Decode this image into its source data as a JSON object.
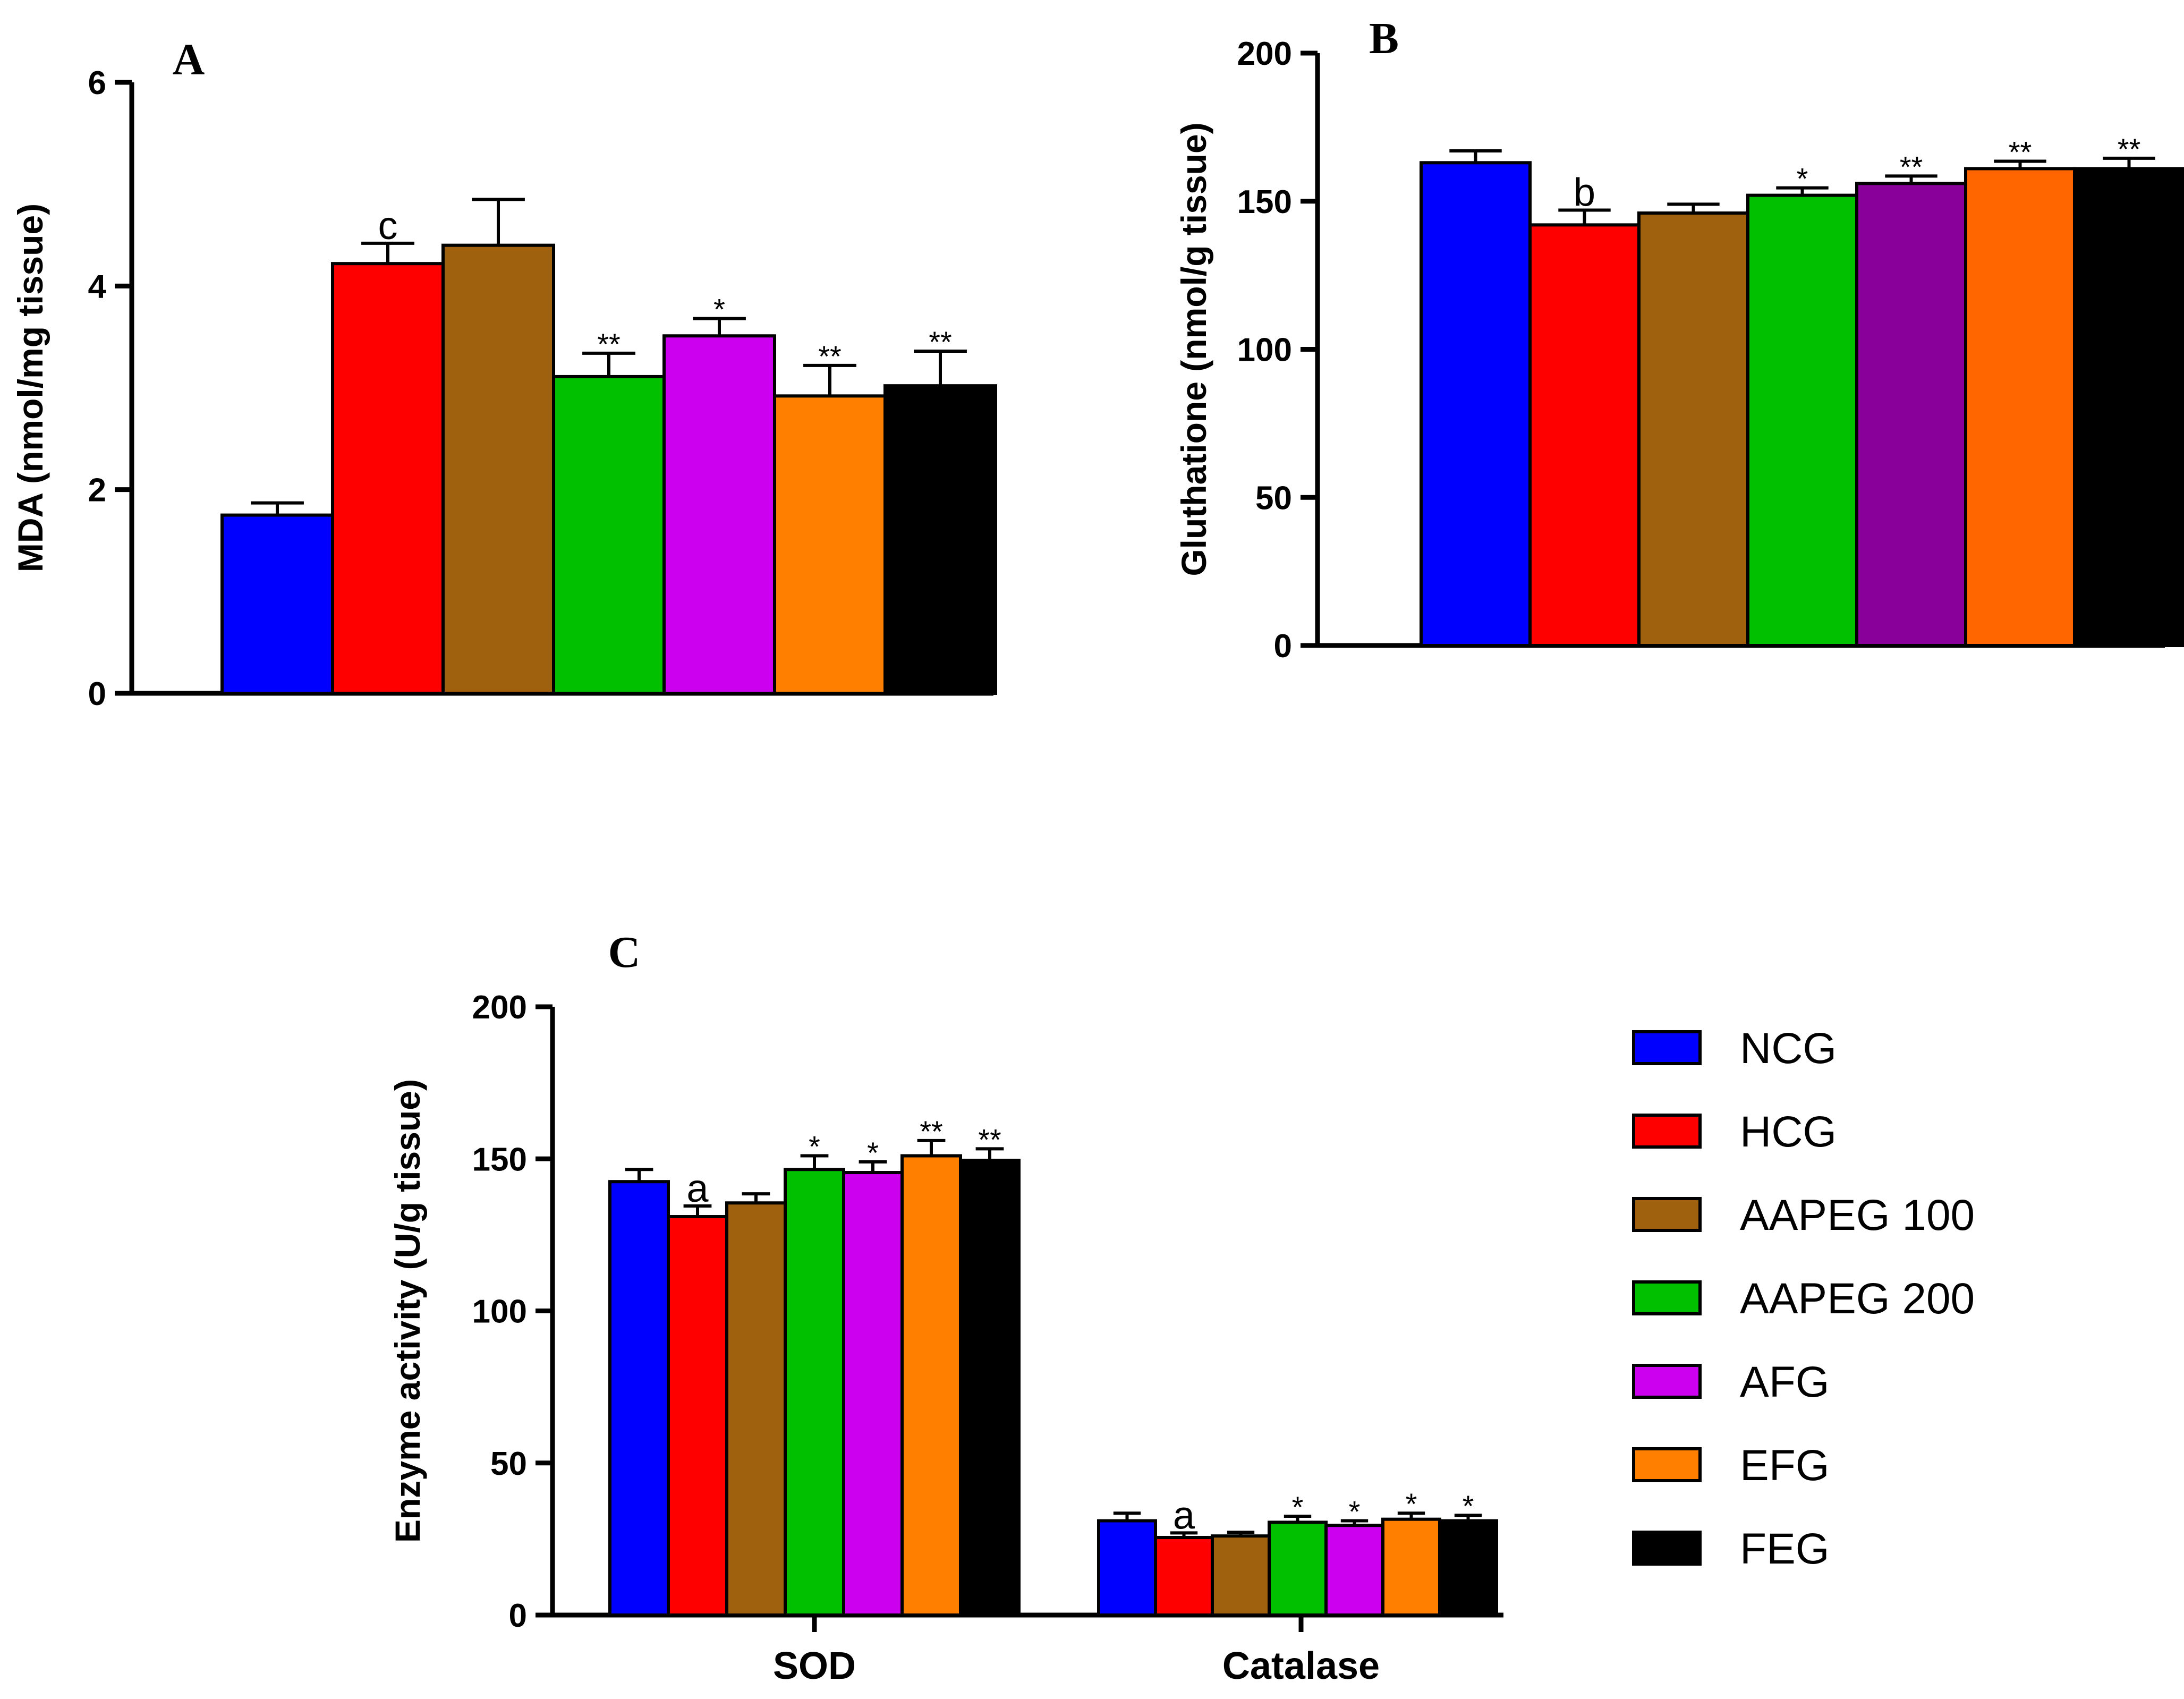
{
  "colors": {
    "NCG": "#0000FF",
    "HCG": "#FF0000",
    "AAPEG 100": "#A0610E",
    "AAPEG 200": "#00C000",
    "AFG": "#CC00EE",
    "AFG_B": "#880099",
    "EFG": "#FF8000",
    "EFG_B": "#FF6600",
    "FEG": "#000000"
  },
  "legend": {
    "entries": [
      "NCG",
      "HCG",
      "AAPEG 100",
      "AAPEG 200",
      "AFG",
      "EFG",
      "FEG"
    ]
  },
  "chart_data": [
    {
      "id": "A",
      "type": "bar",
      "panel_label": "A",
      "ylabel": "MDA (nmol/mg tissue)",
      "ylim": [
        0,
        6
      ],
      "yticks": [
        0,
        2,
        4,
        6
      ],
      "categories": [
        "NCG",
        "HCG",
        "AAPEG 100",
        "AAPEG 200",
        "AFG",
        "EFG",
        "FEG"
      ],
      "values": [
        1.75,
        4.22,
        4.4,
        3.11,
        3.51,
        2.92,
        3.02
      ],
      "errors": [
        0.12,
        0.2,
        0.45,
        0.23,
        0.17,
        0.3,
        0.34
      ],
      "annotations": [
        "",
        "c",
        "",
        "**",
        "*",
        "**",
        "**"
      ]
    },
    {
      "id": "B",
      "type": "bar",
      "panel_label": "B",
      "ylabel": "Gluthatione (nmol/g tissue)",
      "ylim": [
        0,
        200
      ],
      "yticks": [
        0,
        50,
        100,
        150,
        200
      ],
      "categories": [
        "NCG",
        "HCG",
        "AAPEG 100",
        "AAPEG 200",
        "AFG",
        "EFG",
        "FEG"
      ],
      "values": [
        163,
        142,
        146,
        152,
        156,
        161,
        161
      ],
      "errors": [
        4,
        5,
        3,
        2.5,
        2.5,
        2.5,
        3.5
      ],
      "annotations": [
        "",
        "b",
        "",
        "*",
        "**",
        "**",
        "**"
      ]
    },
    {
      "id": "C",
      "type": "bar",
      "panel_label": "C",
      "ylabel": "Enzyme activity (U/g tissue)",
      "ylim": [
        0,
        200
      ],
      "yticks": [
        0,
        50,
        100,
        150,
        200
      ],
      "categories": [
        "SOD",
        "Catalase"
      ],
      "series": [
        {
          "name": "NCG",
          "values": [
            142.5,
            31
          ],
          "errors": [
            4,
            2.5
          ],
          "annotations": [
            "",
            ""
          ]
        },
        {
          "name": "HCG",
          "values": [
            131,
            25.5
          ],
          "errors": [
            3.5,
            1.5
          ],
          "annotations": [
            "a",
            "a"
          ]
        },
        {
          "name": "AAPEG 100",
          "values": [
            135.5,
            26
          ],
          "errors": [
            3,
            1.2
          ],
          "annotations": [
            "",
            ""
          ]
        },
        {
          "name": "AAPEG 200",
          "values": [
            146.5,
            30.5
          ],
          "errors": [
            4.5,
            2
          ],
          "annotations": [
            "*",
            "*"
          ]
        },
        {
          "name": "AFG",
          "values": [
            145.5,
            29.5
          ],
          "errors": [
            3.5,
            1.5
          ],
          "annotations": [
            "*",
            "*"
          ]
        },
        {
          "name": "EFG",
          "values": [
            151,
            31.5
          ],
          "errors": [
            5,
            2
          ],
          "annotations": [
            "**",
            "*"
          ]
        },
        {
          "name": "FEG",
          "values": [
            149.5,
            31
          ],
          "errors": [
            3.8,
            1.8
          ],
          "annotations": [
            "**",
            "*"
          ]
        }
      ]
    }
  ]
}
